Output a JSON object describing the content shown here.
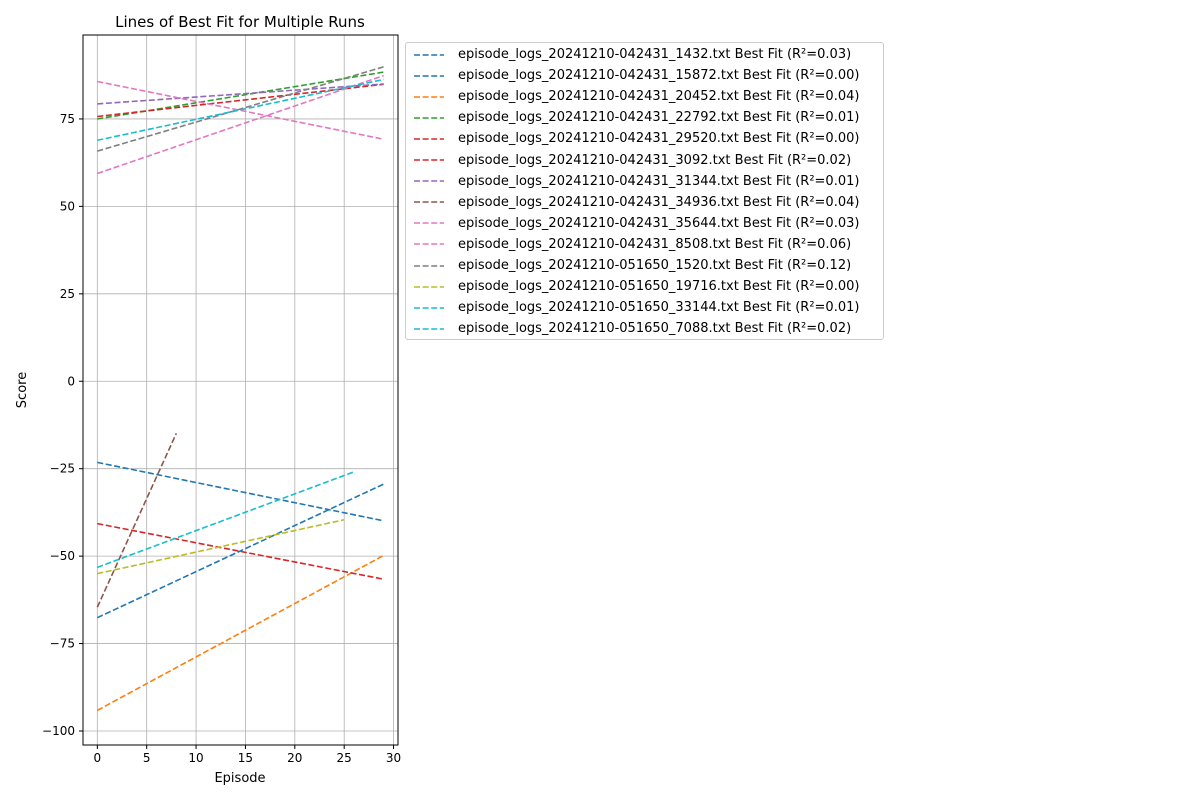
{
  "chart_data": {
    "type": "line",
    "title": "Lines of Best Fit for Multiple Runs",
    "xlabel": "Episode",
    "ylabel": "Score",
    "xlim": [
      -1.45,
      30.45
    ],
    "ylim": [
      -104,
      99
    ],
    "xticks": [
      0,
      5,
      10,
      15,
      20,
      25,
      30
    ],
    "yticks": [
      -100,
      -75,
      -50,
      -25,
      0,
      25,
      50,
      75
    ],
    "xtick_labels": [
      "0",
      "5",
      "10",
      "15",
      "20",
      "25",
      "30"
    ],
    "ytick_labels": [
      "−100",
      "−75",
      "−50",
      "−25",
      "0",
      "25",
      "50",
      "75"
    ],
    "grid": true,
    "legend_position": "outside-right-top",
    "series": [
      {
        "name": "episode_logs_20241210-042431_1432.txt Best Fit (R²=0.03)",
        "color": "#1f77b4",
        "x": [
          0,
          29
        ],
        "y": [
          -23.2,
          -39.9
        ]
      },
      {
        "name": "episode_logs_20241210-042431_15872.txt Best Fit (R²=0.00)",
        "color": "#1f77b4",
        "x": [
          0,
          29
        ],
        "y": [
          -67.6,
          -29.4
        ]
      },
      {
        "name": "episode_logs_20241210-042431_20452.txt Best Fit (R²=0.04)",
        "color": "#ff7f0e",
        "x": [
          0,
          29
        ],
        "y": [
          -94.1,
          -49.8
        ]
      },
      {
        "name": "episode_logs_20241210-042431_22792.txt Best Fit (R²=0.01)",
        "color": "#2ca02c",
        "x": [
          0,
          29
        ],
        "y": [
          75.0,
          88.4
        ]
      },
      {
        "name": "episode_logs_20241210-042431_29520.txt Best Fit (R²=0.00)",
        "color": "#d62728",
        "x": [
          0,
          29
        ],
        "y": [
          -40.7,
          -56.6
        ]
      },
      {
        "name": "episode_logs_20241210-042431_3092.txt Best Fit (R²=0.02)",
        "color": "#d62728",
        "x": [
          0,
          29
        ],
        "y": [
          75.7,
          84.9
        ]
      },
      {
        "name": "episode_logs_20241210-042431_31344.txt Best Fit (R²=0.01)",
        "color": "#9467bd",
        "x": [
          0,
          29
        ],
        "y": [
          79.3,
          85.0
        ]
      },
      {
        "name": "episode_logs_20241210-042431_34936.txt Best Fit (R²=0.04)",
        "color": "#8c564b",
        "x": [
          0,
          8
        ],
        "y": [
          -64.6,
          -14.9
        ]
      },
      {
        "name": "episode_logs_20241210-042431_35644.txt Best Fit (R²=0.03)",
        "color": "#e377c2",
        "x": [
          0,
          29
        ],
        "y": [
          59.4,
          87.4
        ]
      },
      {
        "name": "episode_logs_20241210-042431_8508.txt Best Fit (R²=0.06)",
        "color": "#e377c2",
        "x": [
          0,
          29
        ],
        "y": [
          85.7,
          69.2
        ]
      },
      {
        "name": "episode_logs_20241210-051650_1520.txt Best Fit (R²=0.12)",
        "color": "#7f7f7f",
        "x": [
          0,
          29
        ],
        "y": [
          65.8,
          89.9
        ]
      },
      {
        "name": "episode_logs_20241210-051650_19716.txt Best Fit (R²=0.00)",
        "color": "#bcbd22",
        "x": [
          0,
          25
        ],
        "y": [
          -55.0,
          -39.6
        ]
      },
      {
        "name": "episode_logs_20241210-051650_33144.txt Best Fit (R²=0.01)",
        "color": "#17becf",
        "x": [
          0,
          26
        ],
        "y": [
          -53.2,
          -25.9
        ]
      },
      {
        "name": "episode_logs_20241210-051650_7088.txt Best Fit (R²=0.02)",
        "color": "#17becf",
        "x": [
          0,
          29
        ],
        "y": [
          68.9,
          86.3
        ]
      }
    ]
  }
}
